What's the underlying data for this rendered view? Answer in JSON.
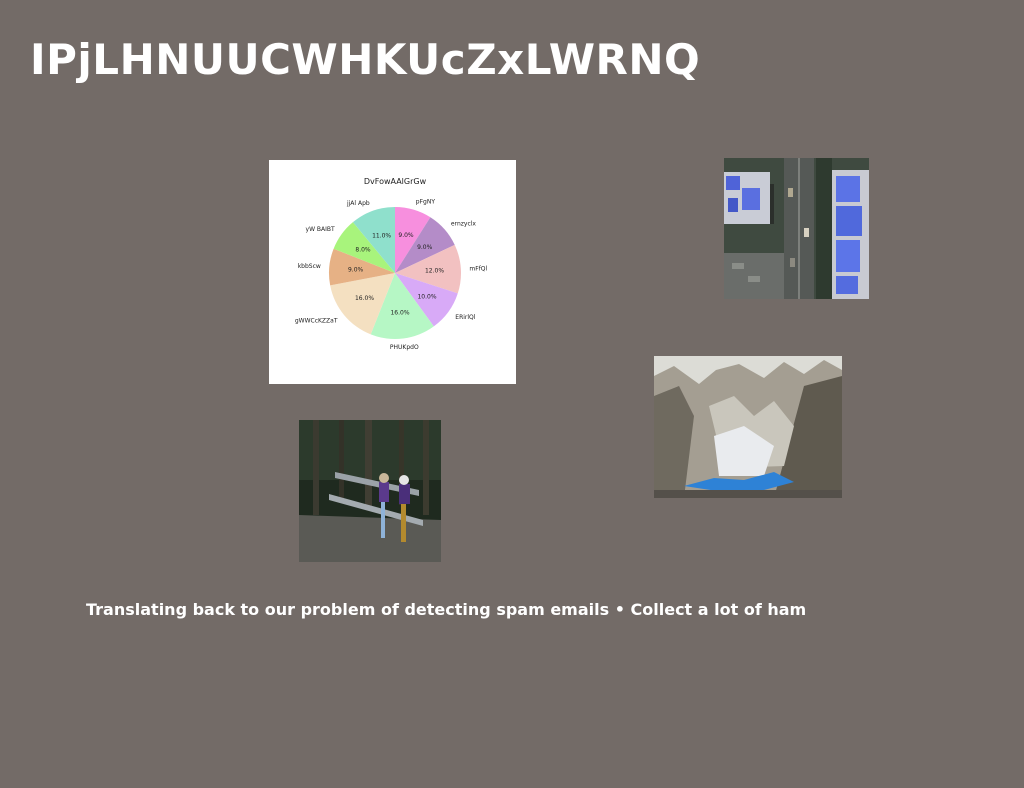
{
  "slide": {
    "title": "IPjLHNUUCWHKUcZxLWRNQ",
    "caption": "Translating back to our problem of detecting spam emails • Collect a lot of ham"
  },
  "images": {
    "aerial": "aerial view of a street between two buildings with solar panels on the roofs",
    "mountain": "rocky mountain peaks with snow and a blue glacial lake",
    "forest": "two people sitting on a bench in a dark forest"
  },
  "chart_data": {
    "type": "pie",
    "title": "DvFowAAlGrGw",
    "slices": [
      {
        "label": "pFgNY",
        "value": 9.0,
        "pct": "9.0%",
        "color": "#f78fde"
      },
      {
        "label": "ernzyclx",
        "value": 9.0,
        "pct": "9.0%",
        "color": "#b48cc8"
      },
      {
        "label": "mFfQl",
        "value": 12.0,
        "pct": "12.0%",
        "color": "#f2c1c1"
      },
      {
        "label": "ERirlQl",
        "value": 10.0,
        "pct": "10.0%",
        "color": "#d8aaf7"
      },
      {
        "label": "PHUKpdO",
        "value": 16.0,
        "pct": "16.0%",
        "color": "#b6f7c5"
      },
      {
        "label": "gWWCcKZZaT",
        "value": 16.0,
        "pct": "16.0%",
        "color": "#f4e0c1"
      },
      {
        "label": "kbbScw",
        "value": 9.0,
        "pct": "9.0%",
        "color": "#e6b185"
      },
      {
        "label": "yW BAIBT",
        "value": 8.0,
        "pct": "8.0%",
        "color": "#a8f47c"
      },
      {
        "label": "jjAl Apb",
        "value": 11.0,
        "pct": "11.0%",
        "color": "#8fe0cc"
      }
    ],
    "start": "top",
    "direction": "clockwise"
  }
}
